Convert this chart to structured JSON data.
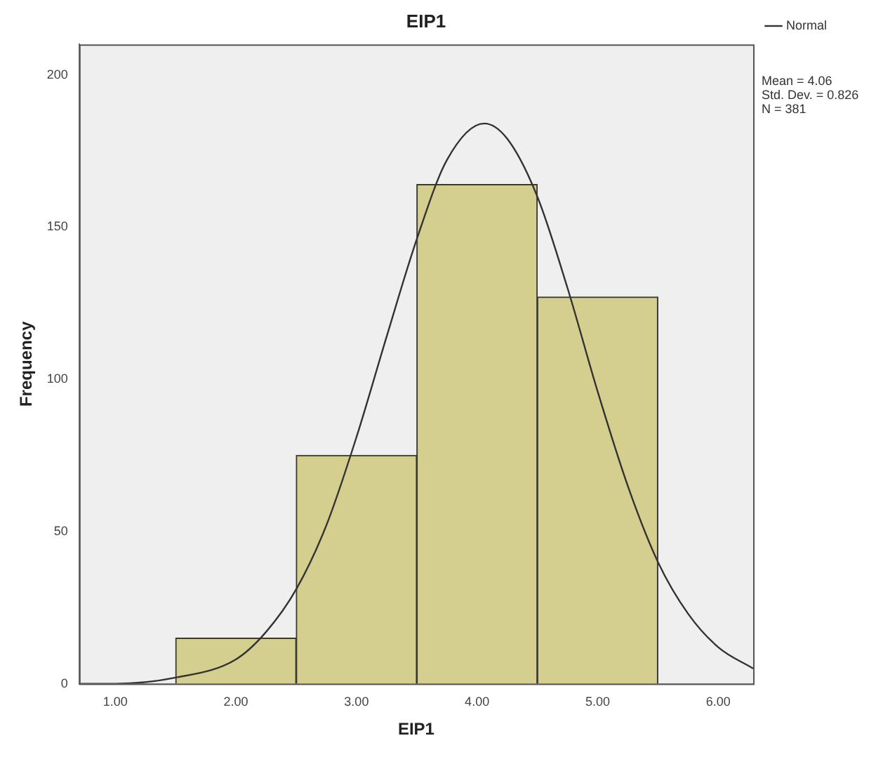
{
  "chart_data": {
    "type": "histogram",
    "title": "EIP1",
    "xlabel": "EIP1",
    "ylabel": "Frequency",
    "bins": [
      1.5,
      2.5,
      3.5,
      4.5,
      5.5
    ],
    "values": [
      15,
      75,
      164,
      127
    ],
    "color": "#d4cf8f",
    "series": [
      {
        "name": "Normal",
        "type": "line",
        "color": "#333333",
        "x": [
          0.7,
          1.0,
          1.5,
          2.0,
          2.25,
          2.5,
          2.75,
          3.0,
          3.25,
          3.5,
          3.75,
          4.06,
          4.25,
          4.5,
          4.75,
          5.0,
          5.25,
          5.5,
          5.75,
          6.0,
          6.29
        ],
        "values": [
          0,
          0,
          2,
          8,
          17,
          31,
          52,
          81,
          114,
          146,
          172,
          184,
          179,
          160,
          130,
          96,
          65,
          40,
          23,
          12,
          5
        ]
      }
    ],
    "xlim": [
      0.7,
      6.29
    ],
    "xticks": [
      {
        "value": 1,
        "label": "1.00"
      },
      {
        "value": 2,
        "label": "2.00"
      },
      {
        "value": 3,
        "label": "3.00"
      },
      {
        "value": 4,
        "label": "4.00"
      },
      {
        "value": 5,
        "label": "5.00"
      },
      {
        "value": 6,
        "label": "6.00"
      }
    ],
    "ylim": [
      0,
      210
    ],
    "yticks": [
      0,
      50,
      100,
      150,
      200
    ],
    "grid": false,
    "legend": "top right",
    "marker": "none",
    "line_style": "solid",
    "annotations": [
      "Mean = 4.06",
      "Std. Dev. = 0.826",
      "N = 381"
    ]
  }
}
